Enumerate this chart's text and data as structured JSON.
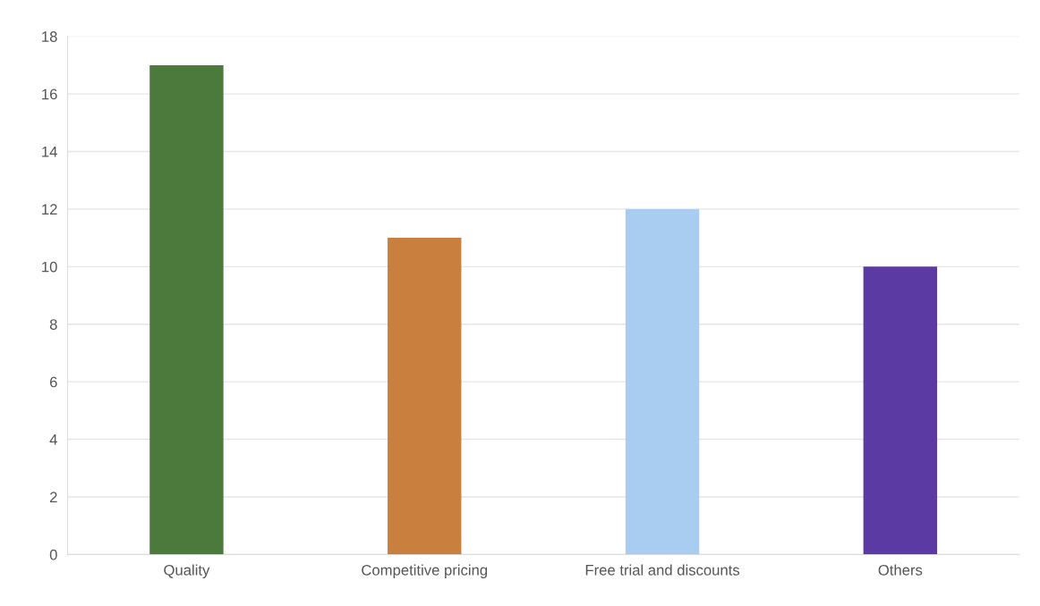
{
  "chart_data": {
    "type": "bar",
    "categories": [
      "Quality",
      "Competitive pricing",
      "Free trial and discounts",
      "Others"
    ],
    "values": [
      17,
      11,
      12,
      10
    ],
    "colors": [
      "#4b7a3c",
      "#c9803f",
      "#a9cdf0",
      "#5b3ba3"
    ],
    "ylim": [
      0,
      18
    ],
    "yticks": [
      0,
      2,
      4,
      6,
      8,
      10,
      12,
      14,
      16,
      18
    ],
    "grid": "y"
  }
}
